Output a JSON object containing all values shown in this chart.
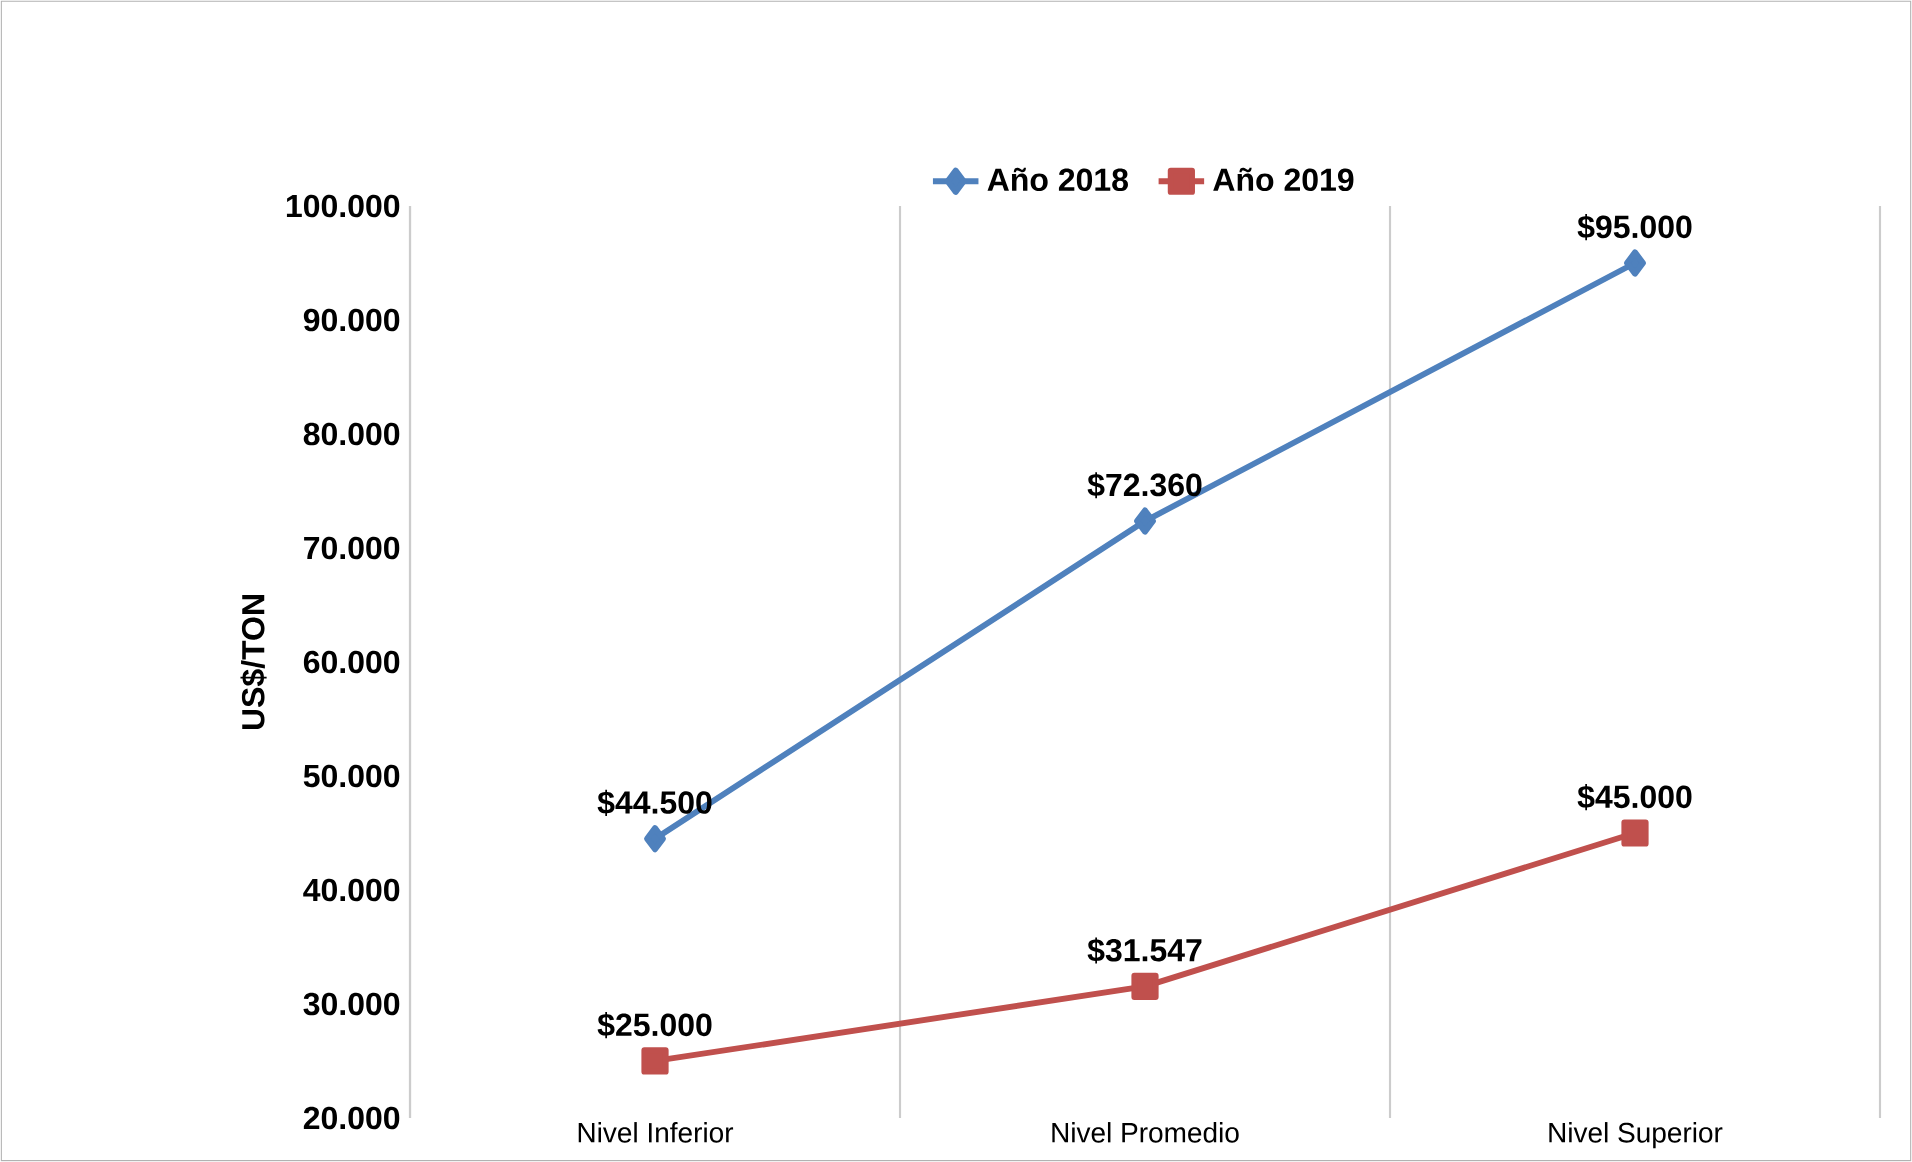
{
  "chart_data": {
    "type": "line",
    "ylabel": "US$/TON",
    "categories": [
      "Nivel Inferior",
      "Nivel Promedio",
      "Nivel Superior"
    ],
    "series": [
      {
        "name": "Año 2018",
        "color": "#4f81bd",
        "marker": "diamond",
        "values": [
          44500,
          72360,
          95000
        ],
        "value_labels": [
          "$44.500",
          "$72.360",
          "$95.000"
        ]
      },
      {
        "name": "Año 2019",
        "color": "#c0504d",
        "marker": "square",
        "values": [
          25000,
          31547,
          45000
        ],
        "value_labels": [
          "$25.000",
          "$31.547",
          "$45.000"
        ]
      }
    ],
    "ylim": [
      20000,
      100000
    ],
    "yticks": [
      {
        "value": 20000,
        "label": "20.000"
      },
      {
        "value": 30000,
        "label": "30.000"
      },
      {
        "value": 40000,
        "label": "40.000"
      },
      {
        "value": 50000,
        "label": "50.000"
      },
      {
        "value": 60000,
        "label": "60.000"
      },
      {
        "value": 70000,
        "label": "70.000"
      },
      {
        "value": 80000,
        "label": "80.000"
      },
      {
        "value": 90000,
        "label": "90.000"
      },
      {
        "value": 100000,
        "label": "100.000"
      }
    ],
    "grid": "x",
    "legend": "top",
    "line_style": "solid"
  }
}
